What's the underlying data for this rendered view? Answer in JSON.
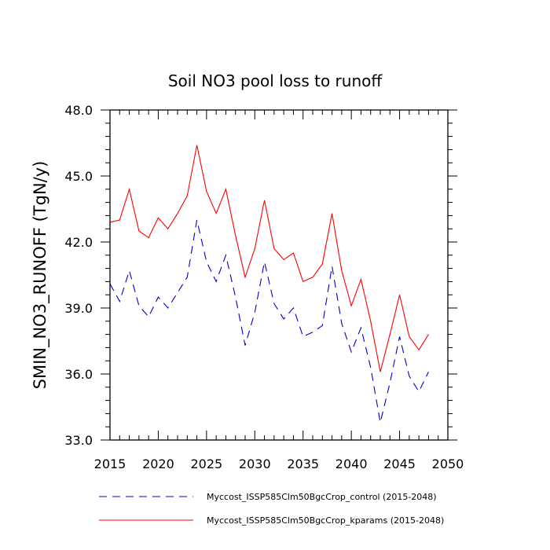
{
  "chart_data": {
    "type": "line",
    "title": "Soil NO3 pool loss to runoff",
    "xlabel": "",
    "ylabel": "SMIN_NO3_RUNOFF  (TgN/y)",
    "xlim": [
      2015,
      2050
    ],
    "ylim": [
      33.0,
      48.0
    ],
    "xticks": [
      2015,
      2020,
      2025,
      2030,
      2035,
      2040,
      2045,
      2050
    ],
    "xtick_labels": [
      "2015",
      "2020",
      "2025",
      "2030",
      "2035",
      "2040",
      "2045",
      "2050"
    ],
    "yticks": [
      33.0,
      36.0,
      39.0,
      42.0,
      45.0,
      48.0
    ],
    "ytick_labels": [
      "33.0",
      "36.0",
      "39.0",
      "42.0",
      "45.0",
      "48.0"
    ],
    "grid": false,
    "legend_position": "bottom",
    "x": [
      2015,
      2016,
      2017,
      2018,
      2019,
      2020,
      2021,
      2022,
      2023,
      2024,
      2025,
      2026,
      2027,
      2028,
      2029,
      2030,
      2031,
      2032,
      2033,
      2034,
      2035,
      2036,
      2037,
      2038,
      2039,
      2040,
      2041,
      2042,
      2043,
      2044,
      2045,
      2046,
      2047,
      2048
    ],
    "series": [
      {
        "name": "Myccost_ISSP585Clm50BgcCrop_control (2015-2048)",
        "color": "#0000cc",
        "style": "dashed",
        "values": [
          40.1,
          39.3,
          40.7,
          39.1,
          38.6,
          39.5,
          39.0,
          39.7,
          40.4,
          43.0,
          41.1,
          40.2,
          41.4,
          39.5,
          37.3,
          38.8,
          41.1,
          39.2,
          38.5,
          39.0,
          37.7,
          37.9,
          38.2,
          40.9,
          38.3,
          37.0,
          38.1,
          36.3,
          33.8,
          35.6,
          37.7,
          35.9,
          35.2,
          36.1
        ]
      },
      {
        "name": "Myccost_ISSP585Clm50BgcCrop_kparams (2015-2048)",
        "color": "#ff0000",
        "style": "solid",
        "values": [
          42.9,
          43.0,
          44.4,
          42.5,
          42.2,
          43.1,
          42.6,
          43.3,
          44.1,
          46.4,
          44.3,
          43.3,
          44.4,
          42.3,
          40.4,
          41.7,
          43.9,
          41.7,
          41.2,
          41.5,
          40.2,
          40.4,
          41.0,
          43.3,
          40.7,
          39.1,
          40.3,
          38.4,
          36.1,
          37.8,
          39.6,
          37.7,
          37.1,
          37.8
        ]
      }
    ]
  }
}
